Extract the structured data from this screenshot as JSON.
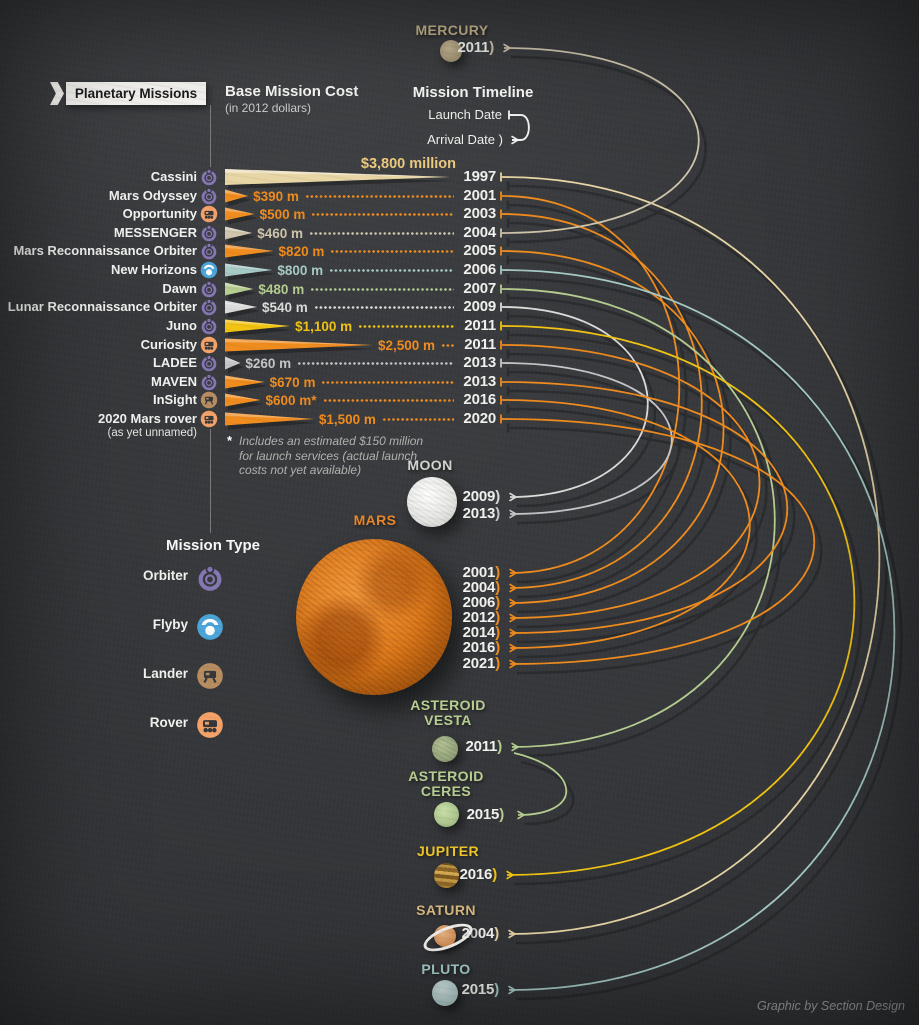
{
  "banner": {
    "label": "Planetary Missions"
  },
  "cost_header": {
    "title": "Base Mission Cost",
    "subtitle": "(in 2012 dollars)"
  },
  "timeline_header": {
    "title": "Mission Timeline",
    "launch_label": "Launch Date",
    "arrival_label": "Arrival Date"
  },
  "footnote": {
    "marker": "*",
    "text": "Includes an estimated $150 million for launch services (actual launch costs not yet available)"
  },
  "credit": "Graphic by Section Design",
  "decorations": {
    "paren": ")"
  },
  "legend": {
    "title": "Mission Type",
    "items": [
      {
        "id": "orbiter",
        "label": "Orbiter",
        "color": "#8577b5"
      },
      {
        "id": "flyby",
        "label": "Flyby",
        "color": "#4ba5d9"
      },
      {
        "id": "lander",
        "label": "Lander",
        "color": "#b78d60"
      },
      {
        "id": "rover",
        "label": "Rover",
        "color": "#f5a269"
      }
    ]
  },
  "chart_data": {
    "type": "bar",
    "title": "Planetary Missions",
    "cost_axis_label": "Base Mission Cost (in 2012 dollars)",
    "cost_unit": "million USD (2012)",
    "cost_scale_max": 3800,
    "missions": [
      {
        "name": "Cassini",
        "mission_type": "orbiter",
        "cost": 3800,
        "cost_label": "$3,800 million",
        "cost_label_color": "#ecca7e",
        "launch_year": "1997",
        "color": "#e8d6a5",
        "arrivals": [
          {
            "target": "SATURN",
            "year": "2004"
          }
        ]
      },
      {
        "name": "Mars Odyssey",
        "mission_type": "orbiter",
        "cost": 390,
        "cost_label": "$390 m",
        "cost_label_color": "#f08c1e",
        "launch_year": "2001",
        "color": "#f08c1e",
        "arrivals": [
          {
            "target": "MARS",
            "year": "2001"
          }
        ]
      },
      {
        "name": "Opportunity",
        "mission_type": "rover",
        "cost": 500,
        "cost_label": "$500 m",
        "cost_label_color": "#f08c1e",
        "launch_year": "2003",
        "color": "#f08c1e",
        "arrivals": [
          {
            "target": "MARS",
            "year": "2004"
          }
        ]
      },
      {
        "name": "MESSENGER",
        "mission_type": "orbiter",
        "cost": 460,
        "cost_label": "$460 m",
        "cost_label_color": "#cfc5ac",
        "launch_year": "2004",
        "color": "#cfc5ac",
        "arrivals": [
          {
            "target": "MERCURY",
            "year": "2011"
          }
        ]
      },
      {
        "name": "Mars Reconnaissance Orbiter",
        "mission_type": "orbiter",
        "cost": 820,
        "cost_label": "$820 m",
        "cost_label_color": "#f08c1e",
        "launch_year": "2005",
        "color": "#f08c1e",
        "arrivals": [
          {
            "target": "MARS",
            "year": "2006"
          }
        ]
      },
      {
        "name": "New Horizons",
        "mission_type": "flyby",
        "cost": 800,
        "cost_label": "$800 m",
        "cost_label_color": "#a6cac6",
        "launch_year": "2006",
        "color": "#a6cac6",
        "arrivals": [
          {
            "target": "PLUTO",
            "year": "2015"
          }
        ]
      },
      {
        "name": "Dawn",
        "mission_type": "orbiter",
        "cost": 480,
        "cost_label": "$480 m",
        "cost_label_color": "#b6cd90",
        "launch_year": "2007",
        "color": "#b6cd90",
        "arrivals": [
          {
            "target": "ASTEROID VESTA",
            "year": "2011"
          },
          {
            "target": "ASTEROID CERES",
            "year": "2015"
          }
        ]
      },
      {
        "name": "Lunar Reconnaissance Orbiter",
        "mission_type": "orbiter",
        "cost": 540,
        "cost_label": "$540 m",
        "cost_label_color": "#dcdcda",
        "launch_year": "2009",
        "color": "#dcdcda",
        "arrivals": [
          {
            "target": "MOON",
            "year": "2009"
          }
        ]
      },
      {
        "name": "Juno",
        "mission_type": "orbiter",
        "cost": 1100,
        "cost_label": "$1,100 m",
        "cost_label_color": "#f1c312",
        "launch_year": "2011",
        "color": "#f1c312",
        "arrivals": [
          {
            "target": "JUPITER",
            "year": "2016"
          }
        ]
      },
      {
        "name": "Curiosity",
        "mission_type": "rover",
        "cost": 2500,
        "cost_label": "$2,500 m",
        "cost_label_color": "#f08c1e",
        "launch_year": "2011",
        "color": "#f08c1e",
        "arrivals": [
          {
            "target": "MARS",
            "year": "2012"
          }
        ]
      },
      {
        "name": "LADEE",
        "mission_type": "orbiter",
        "cost": 260,
        "cost_label": "$260 m",
        "cost_label_color": "#c6c6c8",
        "launch_year": "2013",
        "color": "#c6c6c8",
        "arrivals": [
          {
            "target": "MOON",
            "year": "2013"
          }
        ]
      },
      {
        "name": "MAVEN",
        "mission_type": "orbiter",
        "cost": 670,
        "cost_label": "$670 m",
        "cost_label_color": "#f08c1e",
        "launch_year": "2013",
        "color": "#f08c1e",
        "arrivals": [
          {
            "target": "MARS",
            "year": "2014"
          }
        ]
      },
      {
        "name": "InSight",
        "mission_type": "lander",
        "cost": 600,
        "cost_label": "$600 m*",
        "cost_label_color": "#f08c1e",
        "launch_year": "2016",
        "color": "#f08c1e",
        "arrivals": [
          {
            "target": "MARS",
            "year": "2016"
          }
        ]
      },
      {
        "name": "2020 Mars rover",
        "sublabel": "(as yet unnamed)",
        "mission_type": "rover",
        "cost": 1500,
        "cost_label": "$1,500 m",
        "cost_label_color": "#f08c1e",
        "launch_year": "2020",
        "color": "#f08c1e",
        "arrivals": [
          {
            "target": "MARS",
            "year": "2021"
          }
        ]
      }
    ],
    "destinations": [
      {
        "id": "mercury",
        "name": "MERCURY",
        "name_lines": [
          "MERCURY"
        ],
        "label_color": "#c8b78f",
        "planet_color": "#b9a98c",
        "arrival_years": [
          "2011"
        ]
      },
      {
        "id": "moon",
        "name": "MOON",
        "name_lines": [
          "MOON"
        ],
        "label_color": "#d4d4d1",
        "planet_color": "#e9e9e6",
        "arrival_years": [
          "2009",
          "2013"
        ]
      },
      {
        "id": "mars",
        "name": "MARS",
        "name_lines": [
          "MARS"
        ],
        "label_color": "#e8872a",
        "planet_color": "#e07918",
        "arrival_years": [
          "2001",
          "2004",
          "2006",
          "2012",
          "2014",
          "2016",
          "2021"
        ]
      },
      {
        "id": "vesta",
        "name": "ASTEROID VESTA",
        "name_lines": [
          "ASTEROID",
          "VESTA"
        ],
        "label_color": "#b9cf92",
        "planet_color": "#9fae83",
        "arrival_years": [
          "2011"
        ]
      },
      {
        "id": "ceres",
        "name": "ASTEROID CERES",
        "name_lines": [
          "ASTEROID",
          "CERES"
        ],
        "label_color": "#b9cf92",
        "planet_color": "#b8cf97",
        "arrival_years": [
          "2015"
        ]
      },
      {
        "id": "jupiter",
        "name": "JUPITER",
        "name_lines": [
          "JUPITER"
        ],
        "label_color": "#eec427",
        "planet_color": "#aa7d2e",
        "arrival_years": [
          "2016"
        ]
      },
      {
        "id": "saturn",
        "name": "SATURN",
        "name_lines": [
          "SATURN"
        ],
        "label_color": "#d9b97e",
        "planet_color": "#d89a64",
        "arrival_years": [
          "2004"
        ]
      },
      {
        "id": "pluto",
        "name": "PLUTO",
        "name_lines": [
          "PLUTO"
        ],
        "label_color": "#a9cecd",
        "planet_color": "#b9d6d4",
        "arrival_years": [
          "2015"
        ]
      }
    ]
  }
}
